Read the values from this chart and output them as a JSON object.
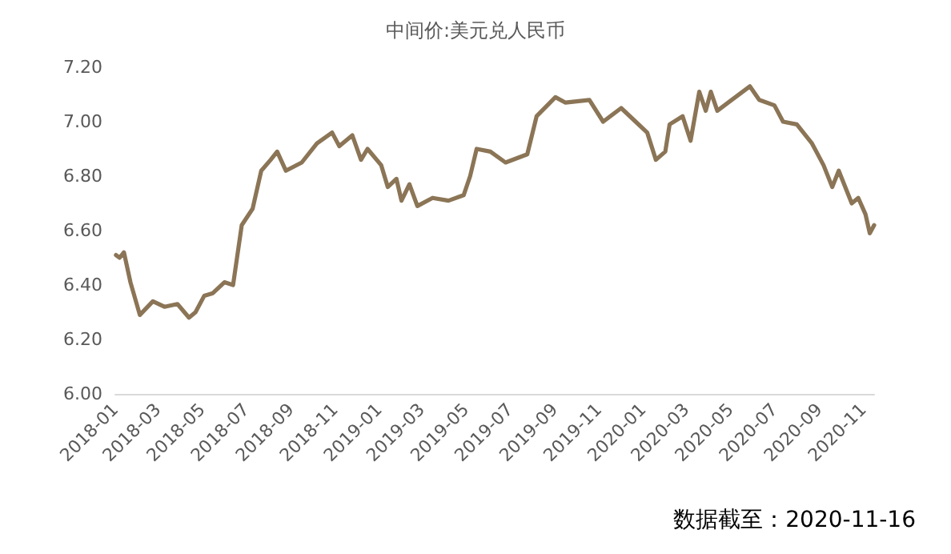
{
  "chart_data": {
    "type": "line",
    "title": "中间价:美元兑人民币",
    "annotations": [
      "数据截至：2020-11-16"
    ],
    "x": [
      "2018-01-02",
      "2018-01-07",
      "2018-01-13",
      "2018-01-22",
      "2018-02-04",
      "2018-02-22",
      "2018-03-10",
      "2018-03-28",
      "2018-04-13",
      "2018-04-22",
      "2018-05-04",
      "2018-05-16",
      "2018-06-01",
      "2018-06-13",
      "2018-06-25",
      "2018-07-10",
      "2018-07-22",
      "2018-08-04",
      "2018-08-13",
      "2018-08-25",
      "2018-09-16",
      "2018-10-07",
      "2018-10-28",
      "2018-11-07",
      "2018-11-25",
      "2018-12-07",
      "2018-12-16",
      "2019-01-04",
      "2019-01-13",
      "2019-01-25",
      "2019-02-01",
      "2019-02-12",
      "2019-02-23",
      "2019-03-16",
      "2019-04-07",
      "2019-04-28",
      "2019-05-07",
      "2019-05-16",
      "2019-06-04",
      "2019-06-25",
      "2019-07-25",
      "2019-08-07",
      "2019-09-02",
      "2019-09-16",
      "2019-10-19",
      "2019-11-07",
      "2019-12-02",
      "2019-12-22",
      "2020-01-07",
      "2020-01-19",
      "2020-02-01",
      "2020-02-07",
      "2020-02-25",
      "2020-03-07",
      "2020-03-19",
      "2020-03-28",
      "2020-04-04",
      "2020-04-13",
      "2020-04-28",
      "2020-05-28",
      "2020-06-10",
      "2020-07-01",
      "2020-07-13",
      "2020-08-01",
      "2020-08-22",
      "2020-09-07",
      "2020-09-19",
      "2020-09-28",
      "2020-10-16",
      "2020-10-25",
      "2020-11-04",
      "2020-11-10",
      "2020-11-16"
    ],
    "series": [
      {
        "color": "#8b7556",
        "values": [
          6.51,
          6.5,
          6.52,
          6.41,
          6.29,
          6.34,
          6.32,
          6.33,
          6.28,
          6.3,
          6.36,
          6.37,
          6.41,
          6.4,
          6.62,
          6.68,
          6.82,
          6.86,
          6.89,
          6.82,
          6.85,
          6.92,
          6.96,
          6.91,
          6.95,
          6.86,
          6.9,
          6.84,
          6.76,
          6.79,
          6.71,
          6.77,
          6.69,
          6.72,
          6.71,
          6.73,
          6.8,
          6.9,
          6.89,
          6.85,
          6.88,
          7.02,
          7.09,
          7.07,
          7.08,
          7.0,
          7.05,
          7.0,
          6.96,
          6.86,
          6.89,
          6.99,
          7.02,
          6.93,
          7.11,
          7.04,
          7.11,
          7.04,
          7.07,
          7.13,
          7.08,
          7.06,
          7.0,
          6.99,
          6.92,
          6.84,
          6.76,
          6.82,
          6.7,
          6.72,
          6.66,
          6.59,
          6.62
        ]
      }
    ],
    "xlim": [
      "2018-01-01",
      "2020-11-16"
    ],
    "xticks": [
      "2018-01",
      "2018-03",
      "2018-05",
      "2018-07",
      "2018-09",
      "2018-11",
      "2019-01",
      "2019-03",
      "2019-05",
      "2019-07",
      "2019-09",
      "2019-11",
      "2020-01",
      "2020-03",
      "2020-05",
      "2020-07",
      "2020-09",
      "2020-11"
    ],
    "ylim": [
      6,
      7.2
    ],
    "yticks": [
      {
        "value": 6,
        "label": "6.00"
      },
      {
        "value": 6.2,
        "label": "6.20"
      },
      {
        "value": 6.4,
        "label": "6.40"
      },
      {
        "value": 6.6,
        "label": "6.60"
      },
      {
        "value": 6.8,
        "label": "6.80"
      },
      {
        "value": 7,
        "label": "7.00"
      },
      {
        "value": 7.2,
        "label": "7.20"
      }
    ],
    "grid": false,
    "marker": "none",
    "line_style": "solid"
  }
}
